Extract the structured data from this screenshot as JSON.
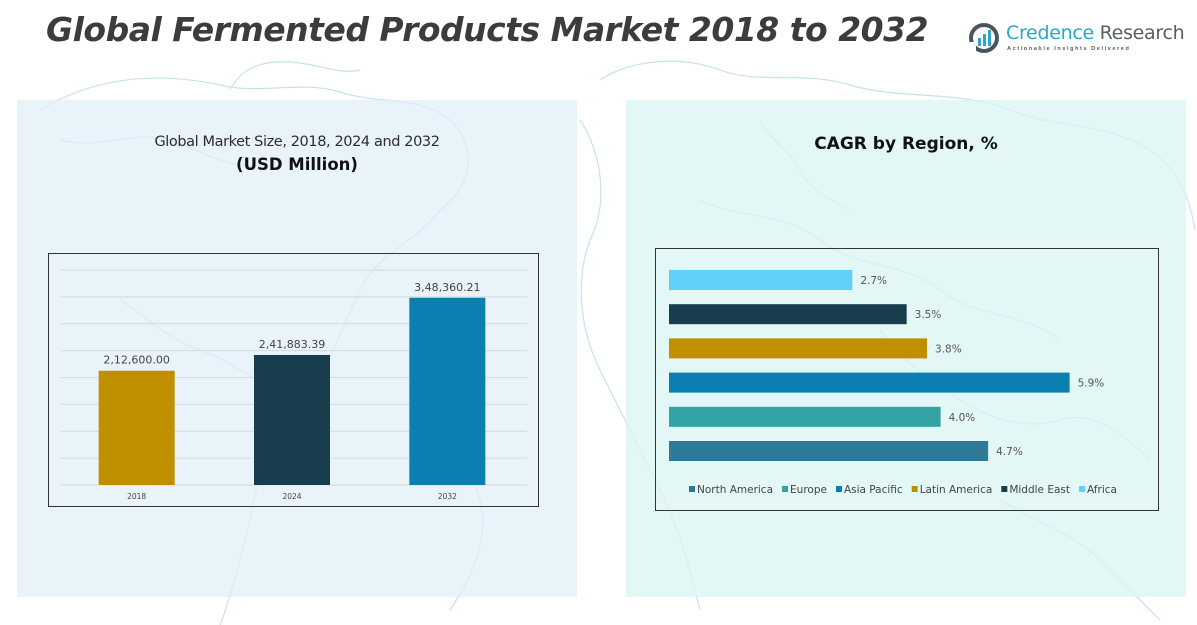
{
  "header": {
    "title": "Global Fermented Products Market 2018 to 2032",
    "logo": {
      "name_part1": "Credence",
      "name_part2": " Research",
      "tagline": "Actionable Insights Delivered",
      "icon": "bar-chart-circle-icon"
    }
  },
  "left_panel": {
    "subtitle": "Global Market Size, 2018, 2024 and 2032",
    "unit": "(USD Million)"
  },
  "right_panel": {
    "title": "CAGR by Region, %"
  },
  "colors": {
    "gold": "#BF8F00",
    "dark_teal": "#183D4C",
    "blue": "#0A7FB0",
    "light_blue": "#5FD0FB",
    "teal": "#33A3A3",
    "steel_blue": "#2E7B99"
  },
  "chart_data": [
    {
      "type": "bar",
      "title": "Global Market Size, 2018, 2024 and 2032 (USD Million)",
      "xlabel": "",
      "ylabel": "",
      "categories": [
        "2018",
        "2024",
        "2032"
      ],
      "values": [
        212600.0,
        241883.39,
        348360.21
      ],
      "value_labels": [
        "2,12,600.00",
        "2,41,883.39",
        "3,48,360.21"
      ],
      "bar_colors": [
        "#BF8F00",
        "#183D4C",
        "#0A7FB0"
      ],
      "ylim": [
        0,
        400000
      ],
      "gridline_step": 50000,
      "grid": true,
      "y_tick_labels_visible": false
    },
    {
      "type": "bar",
      "orientation": "horizontal",
      "title": "CAGR by Region, %",
      "categories": [
        "Africa",
        "Middle East",
        "Latin America",
        "Asia Pacific",
        "Europe",
        "North America"
      ],
      "values": [
        2.7,
        3.5,
        3.8,
        5.9,
        4.0,
        4.7
      ],
      "value_labels": [
        "2.7%",
        "3.5%",
        "3.8%",
        "5.9%",
        "4.0%",
        "4.7%"
      ],
      "bar_colors": [
        "#5FD0FB",
        "#183D4C",
        "#BF8F00",
        "#0A7FB0",
        "#33A3A3",
        "#2E7B99"
      ],
      "xlim": [
        0,
        7
      ],
      "grid": false,
      "legend_position": "bottom",
      "legend": [
        {
          "label": "North America",
          "color": "#2E7B99"
        },
        {
          "label": "Europe",
          "color": "#33A3A3"
        },
        {
          "label": "Asia Pacific",
          "color": "#0A7FB0"
        },
        {
          "label": "Latin America",
          "color": "#BF8F00"
        },
        {
          "label": "Middle East",
          "color": "#183D4C"
        },
        {
          "label": "Africa",
          "color": "#5FD0FB"
        }
      ]
    }
  ]
}
